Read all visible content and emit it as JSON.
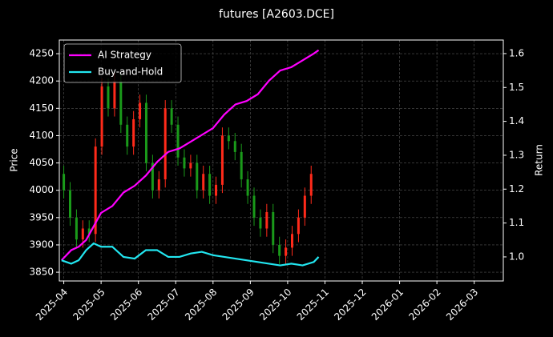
{
  "chart_data": {
    "type": "candlestick-with-returns",
    "title": "futures [A2603.DCE]",
    "y_label": "Price",
    "y2_label": "Return",
    "grid": true,
    "legend_position": "upper left",
    "up_color": "#ff2a1a",
    "down_color": "#1a9a1a",
    "xlim": [
      -0.12,
      11.78
    ],
    "xticks": [
      {
        "value": 0,
        "label": "2025-04"
      },
      {
        "value": 1,
        "label": "2025-05"
      },
      {
        "value": 2,
        "label": "2025-06"
      },
      {
        "value": 3,
        "label": "2025-07"
      },
      {
        "value": 4,
        "label": "2025-08"
      },
      {
        "value": 5,
        "label": "2025-09"
      },
      {
        "value": 6,
        "label": "2025-10"
      },
      {
        "value": 7,
        "label": "2025-11"
      },
      {
        "value": 8,
        "label": "2025-12"
      },
      {
        "value": 9,
        "label": "2026-01"
      },
      {
        "value": 10,
        "label": "2026-02"
      },
      {
        "value": 11,
        "label": "2026-03"
      }
    ],
    "ylim": [
      3834,
      4275
    ],
    "yticks": [
      3850,
      3900,
      3950,
      4000,
      4050,
      4100,
      4150,
      4200,
      4250
    ],
    "y2lim": [
      0.929,
      1.64
    ],
    "y2ticks": [
      {
        "value": 1,
        "label": "1.0"
      },
      1.1,
      1.2,
      1.3,
      1.4,
      1.5,
      1.6
    ],
    "candles": {
      "x": [
        0,
        0.17,
        0.34,
        0.51,
        0.68,
        0.85,
        1.02,
        1.19,
        1.36,
        1.53,
        1.7,
        1.87,
        2.04,
        2.21,
        2.38,
        2.55,
        2.72,
        2.89,
        3.06,
        3.23,
        3.4,
        3.57,
        3.74,
        3.91,
        4.08,
        4.25,
        4.42,
        4.59,
        4.76,
        4.93,
        5.1,
        5.27,
        5.44,
        5.61,
        5.78,
        5.95,
        6.12,
        6.29,
        6.46,
        6.63
      ],
      "open": [
        4030,
        4000,
        3950,
        3910,
        3930,
        3920,
        4080,
        4190,
        4150,
        4200,
        4120,
        4080,
        4130,
        4160,
        4050,
        4000,
        4020,
        4150,
        4120,
        4060,
        4040,
        4050,
        4000,
        4030,
        3990,
        4010,
        4100,
        4090,
        4070,
        4020,
        3990,
        3950,
        3930,
        3960,
        3900,
        3880,
        3895,
        3920,
        3950,
        3990
      ],
      "high": [
        4045,
        4015,
        3965,
        3945,
        3945,
        4095,
        4205,
        4205,
        4215,
        4215,
        4135,
        4145,
        4175,
        4175,
        4065,
        4035,
        4165,
        4165,
        4135,
        4075,
        4065,
        4065,
        4045,
        4045,
        4025,
        4115,
        4115,
        4105,
        4085,
        4035,
        4005,
        3965,
        3975,
        3975,
        3915,
        3910,
        3935,
        3965,
        4005,
        4045
      ],
      "low": [
        3985,
        3935,
        3895,
        3895,
        3905,
        3905,
        4065,
        4135,
        4135,
        4105,
        4065,
        4065,
        4115,
        4035,
        3985,
        3985,
        4005,
        4105,
        4045,
        4025,
        4025,
        3985,
        3985,
        3975,
        3975,
        3995,
        4075,
        4055,
        4005,
        3975,
        3935,
        3915,
        3915,
        3885,
        3865,
        3865,
        3880,
        3905,
        3935,
        3975
      ],
      "close": [
        4000,
        3950,
        3910,
        3930,
        3920,
        4080,
        4190,
        4150,
        4200,
        4120,
        4080,
        4130,
        4160,
        4050,
        4000,
        4020,
        4150,
        4120,
        4060,
        4040,
        4050,
        4000,
        4030,
        3990,
        4010,
        4100,
        4090,
        4070,
        4020,
        3990,
        3950,
        3930,
        3960,
        3900,
        3880,
        3895,
        3920,
        3950,
        3990,
        4030
      ]
    },
    "x": [
      -0.06,
      0.2,
      0.4,
      0.6,
      0.8,
      1.0,
      1.3,
      1.6,
      1.9,
      2.2,
      2.5,
      2.8,
      3.1,
      3.4,
      3.7,
      4.0,
      4.3,
      4.6,
      4.9,
      5.2,
      5.5,
      5.8,
      6.1,
      6.4,
      6.7,
      6.83
    ],
    "series": [
      {
        "name": "AI Strategy",
        "color": "#ff00ff",
        "axis": "y2",
        "values": [
          0.99,
          1.02,
          1.03,
          1.05,
          1.09,
          1.13,
          1.15,
          1.19,
          1.21,
          1.24,
          1.28,
          1.31,
          1.32,
          1.34,
          1.36,
          1.38,
          1.42,
          1.45,
          1.46,
          1.48,
          1.52,
          1.55,
          1.56,
          1.58,
          1.6,
          1.61
        ]
      },
      {
        "name": "Buy-and-Hold",
        "color": "#22e6f0",
        "axis": "y2",
        "values": [
          0.99,
          0.98,
          0.99,
          1.02,
          1.04,
          1.03,
          1.03,
          1.0,
          0.995,
          1.02,
          1.02,
          1.0,
          1.0,
          1.01,
          1.015,
          1.005,
          1.0,
          0.995,
          0.99,
          0.985,
          0.98,
          0.975,
          0.98,
          0.975,
          0.985,
          1.0
        ]
      }
    ]
  }
}
